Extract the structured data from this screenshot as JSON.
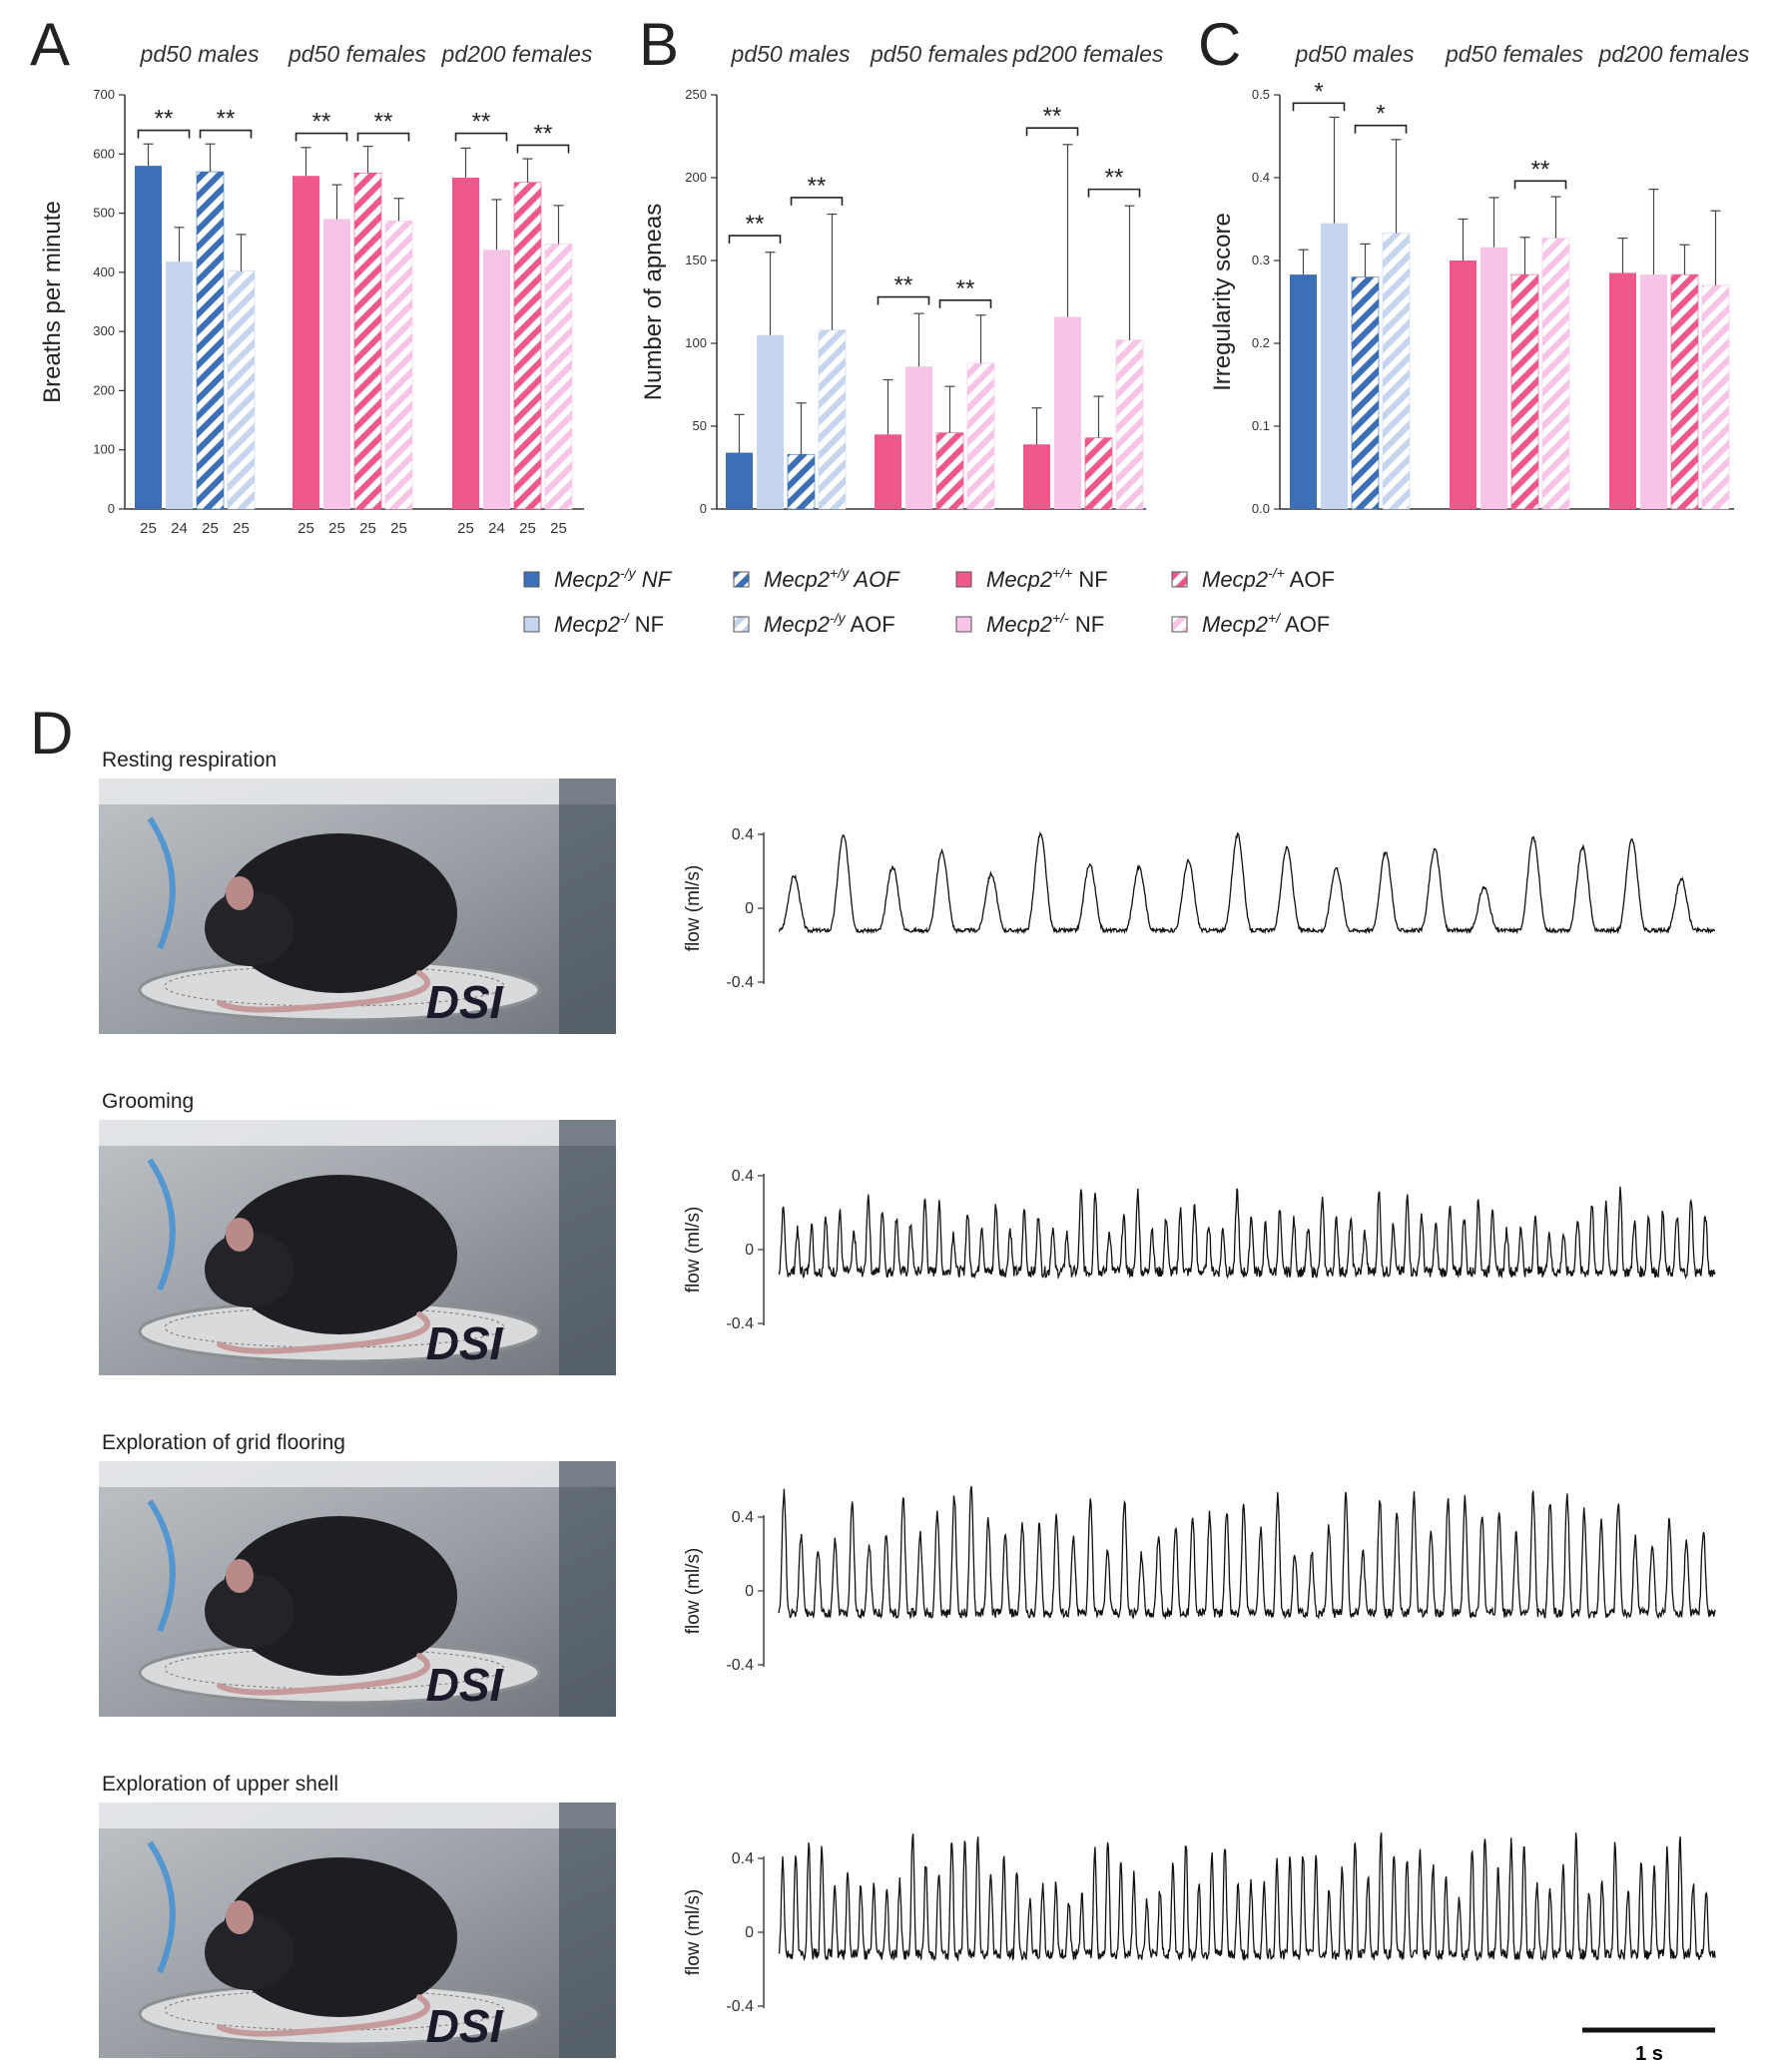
{
  "figure": {
    "panel_letters": [
      "A",
      "B",
      "C",
      "D"
    ],
    "group_titles": [
      "pd50 males",
      "pd50 females",
      "pd200 females"
    ],
    "colors": {
      "male_wt": "#3d6fb6",
      "male_mut": "#c6d5ee",
      "female_wt": "#f0588a",
      "female_mut": "#f7c3e6",
      "axis": "#333333"
    }
  },
  "legend": [
    {
      "gene": "Mecp2",
      "sup": "-/y",
      "cond": "NF",
      "fill": "male_wt",
      "hatch": false,
      "italic_cond": true
    },
    {
      "gene": "Mecp2",
      "sup": "+/y",
      "cond": "AOF",
      "fill": "male_wt",
      "hatch": true,
      "italic_cond": true
    },
    {
      "gene": "Mecp2",
      "sup": "+/+",
      "cond": "NF",
      "fill": "female_wt",
      "hatch": false,
      "italic_cond": false
    },
    {
      "gene": "Mecp2",
      "sup": "-/+",
      "cond": "AOF",
      "fill": "female_wt",
      "hatch": true,
      "italic_cond": false
    },
    {
      "gene": "Mecp2",
      "sup": "-/",
      "cond": "NF",
      "fill": "male_mut",
      "hatch": false,
      "italic_cond": false
    },
    {
      "gene": "Mecp2",
      "sup": "-/y",
      "cond": "AOF",
      "fill": "male_mut",
      "hatch": true,
      "italic_cond": false
    },
    {
      "gene": "Mecp2",
      "sup": "+/-",
      "cond": "NF",
      "fill": "female_mut",
      "hatch": false,
      "italic_cond": false
    },
    {
      "gene": "Mecp2",
      "sup": "+/",
      "cond": "AOF",
      "fill": "female_mut",
      "hatch": true,
      "italic_cond": false
    }
  ],
  "chart_data": [
    {
      "type": "bar",
      "panel": "A",
      "ylabel": "Breaths per minute",
      "ylim": [
        0,
        700
      ],
      "yticks": [
        0,
        100,
        200,
        300,
        400,
        500,
        600,
        700
      ],
      "groups": [
        "pd50 males",
        "pd50 females",
        "pd200 females"
      ],
      "bars": [
        {
          "group": 0,
          "color": "male_wt",
          "hatch": false,
          "value": 580,
          "err": 37,
          "n": "25"
        },
        {
          "group": 0,
          "color": "male_mut",
          "hatch": false,
          "value": 418,
          "err": 58,
          "n": "24"
        },
        {
          "group": 0,
          "color": "male_wt",
          "hatch": true,
          "value": 570,
          "err": 47,
          "n": "25"
        },
        {
          "group": 0,
          "color": "male_mut",
          "hatch": true,
          "value": 402,
          "err": 62,
          "n": "25"
        },
        {
          "group": 1,
          "color": "female_wt",
          "hatch": false,
          "value": 563,
          "err": 48,
          "n": "25"
        },
        {
          "group": 1,
          "color": "female_mut",
          "hatch": false,
          "value": 490,
          "err": 58,
          "n": "25"
        },
        {
          "group": 1,
          "color": "female_wt",
          "hatch": true,
          "value": 568,
          "err": 45,
          "n": "25"
        },
        {
          "group": 1,
          "color": "female_mut",
          "hatch": true,
          "value": 487,
          "err": 38,
          "n": "25"
        },
        {
          "group": 2,
          "color": "female_wt",
          "hatch": false,
          "value": 560,
          "err": 50,
          "n": "25"
        },
        {
          "group": 2,
          "color": "female_mut",
          "hatch": false,
          "value": 438,
          "err": 85,
          "n": "24"
        },
        {
          "group": 2,
          "color": "female_wt",
          "hatch": true,
          "value": 552,
          "err": 40,
          "n": "25"
        },
        {
          "group": 2,
          "color": "female_mut",
          "hatch": true,
          "value": 448,
          "err": 65,
          "n": "25"
        }
      ],
      "significance": [
        {
          "from": 0,
          "to": 1,
          "level": 640,
          "label": "**"
        },
        {
          "from": 2,
          "to": 3,
          "level": 640,
          "label": "**"
        },
        {
          "from": 4,
          "to": 5,
          "level": 635,
          "label": "**"
        },
        {
          "from": 6,
          "to": 7,
          "level": 635,
          "label": "**"
        },
        {
          "from": 8,
          "to": 9,
          "level": 635,
          "label": "**"
        },
        {
          "from": 10,
          "to": 11,
          "level": 615,
          "label": "**"
        }
      ]
    },
    {
      "type": "bar",
      "panel": "B",
      "ylabel": "Number of apneas",
      "ylim": [
        0,
        250
      ],
      "yticks": [
        0,
        50,
        100,
        150,
        200,
        250
      ],
      "groups": [
        "pd50 males",
        "pd50 females",
        "pd200 females"
      ],
      "bars": [
        {
          "group": 0,
          "color": "male_wt",
          "hatch": false,
          "value": 34,
          "err": 23
        },
        {
          "group": 0,
          "color": "male_mut",
          "hatch": false,
          "value": 105,
          "err": 50
        },
        {
          "group": 0,
          "color": "male_wt",
          "hatch": true,
          "value": 33,
          "err": 31
        },
        {
          "group": 0,
          "color": "male_mut",
          "hatch": true,
          "value": 108,
          "err": 70
        },
        {
          "group": 1,
          "color": "female_wt",
          "hatch": false,
          "value": 45,
          "err": 33
        },
        {
          "group": 1,
          "color": "female_mut",
          "hatch": false,
          "value": 86,
          "err": 32
        },
        {
          "group": 1,
          "color": "female_wt",
          "hatch": true,
          "value": 46,
          "err": 28
        },
        {
          "group": 1,
          "color": "female_mut",
          "hatch": true,
          "value": 88,
          "err": 29
        },
        {
          "group": 2,
          "color": "female_wt",
          "hatch": false,
          "value": 39,
          "err": 22
        },
        {
          "group": 2,
          "color": "female_mut",
          "hatch": false,
          "value": 116,
          "err": 104
        },
        {
          "group": 2,
          "color": "female_wt",
          "hatch": true,
          "value": 43,
          "err": 25
        },
        {
          "group": 2,
          "color": "female_mut",
          "hatch": true,
          "value": 102,
          "err": 81
        }
      ],
      "significance": [
        {
          "from": 0,
          "to": 1,
          "level": 165,
          "label": "**"
        },
        {
          "from": 2,
          "to": 3,
          "level": 188,
          "label": "**"
        },
        {
          "from": 4,
          "to": 5,
          "level": 128,
          "label": "**"
        },
        {
          "from": 6,
          "to": 7,
          "level": 126,
          "label": "**"
        },
        {
          "from": 8,
          "to": 9,
          "level": 230,
          "label": "**"
        },
        {
          "from": 10,
          "to": 11,
          "level": 193,
          "label": "**"
        }
      ]
    },
    {
      "type": "bar",
      "panel": "C",
      "ylabel": "Irregularity score",
      "ylim": [
        0,
        0.5
      ],
      "yticks": [
        "0.0",
        "0.1",
        "0.2",
        "0.3",
        "0.4",
        "0.5"
      ],
      "groups": [
        "pd50 males",
        "pd50 females",
        "pd200 females"
      ],
      "bars": [
        {
          "group": 0,
          "color": "male_wt",
          "hatch": false,
          "value": 0.283,
          "err": 0.03
        },
        {
          "group": 0,
          "color": "male_mut",
          "hatch": false,
          "value": 0.345,
          "err": 0.128
        },
        {
          "group": 0,
          "color": "male_wt",
          "hatch": true,
          "value": 0.28,
          "err": 0.04
        },
        {
          "group": 0,
          "color": "male_mut",
          "hatch": true,
          "value": 0.333,
          "err": 0.113
        },
        {
          "group": 1,
          "color": "female_wt",
          "hatch": false,
          "value": 0.3,
          "err": 0.05
        },
        {
          "group": 1,
          "color": "female_mut",
          "hatch": false,
          "value": 0.316,
          "err": 0.06
        },
        {
          "group": 1,
          "color": "female_wt",
          "hatch": true,
          "value": 0.283,
          "err": 0.045
        },
        {
          "group": 1,
          "color": "female_mut",
          "hatch": true,
          "value": 0.327,
          "err": 0.05
        },
        {
          "group": 2,
          "color": "female_wt",
          "hatch": false,
          "value": 0.285,
          "err": 0.042
        },
        {
          "group": 2,
          "color": "female_mut",
          "hatch": false,
          "value": 0.283,
          "err": 0.103
        },
        {
          "group": 2,
          "color": "female_wt",
          "hatch": true,
          "value": 0.283,
          "err": 0.036
        },
        {
          "group": 2,
          "color": "female_mut",
          "hatch": true,
          "value": 0.27,
          "err": 0.09
        }
      ],
      "significance": [
        {
          "from": 0,
          "to": 1,
          "level": 0.49,
          "label": "*"
        },
        {
          "from": 2,
          "to": 3,
          "level": 0.463,
          "label": "*"
        },
        {
          "from": 6,
          "to": 7,
          "level": 0.396,
          "label": "**"
        }
      ]
    },
    {
      "type": "line",
      "panel": "D",
      "ylabel": "flow (ml/s)",
      "yticks": [
        "0.4",
        "0",
        "-0.4"
      ],
      "ylim": [
        -0.4,
        0.4
      ],
      "scale_bar": "1 s",
      "traces": [
        {
          "title": "Resting respiration",
          "breaths": 19,
          "amp": 0.26,
          "noise": 0.02,
          "seed": 3
        },
        {
          "title": "Grooming",
          "breaths": 66,
          "amp": 0.2,
          "noise": 0.06,
          "seed": 7
        },
        {
          "title": "Exploration of grid flooring",
          "breaths": 55,
          "amp": 0.38,
          "noise": 0.05,
          "seed": 11
        },
        {
          "title": "Exploration of upper shell",
          "breaths": 72,
          "amp": 0.36,
          "noise": 0.06,
          "seed": 19
        }
      ]
    }
  ],
  "photos": [
    {
      "label": "DSI"
    },
    {
      "label": "DSI"
    },
    {
      "label": "DSI"
    },
    {
      "label": "DSI"
    }
  ]
}
